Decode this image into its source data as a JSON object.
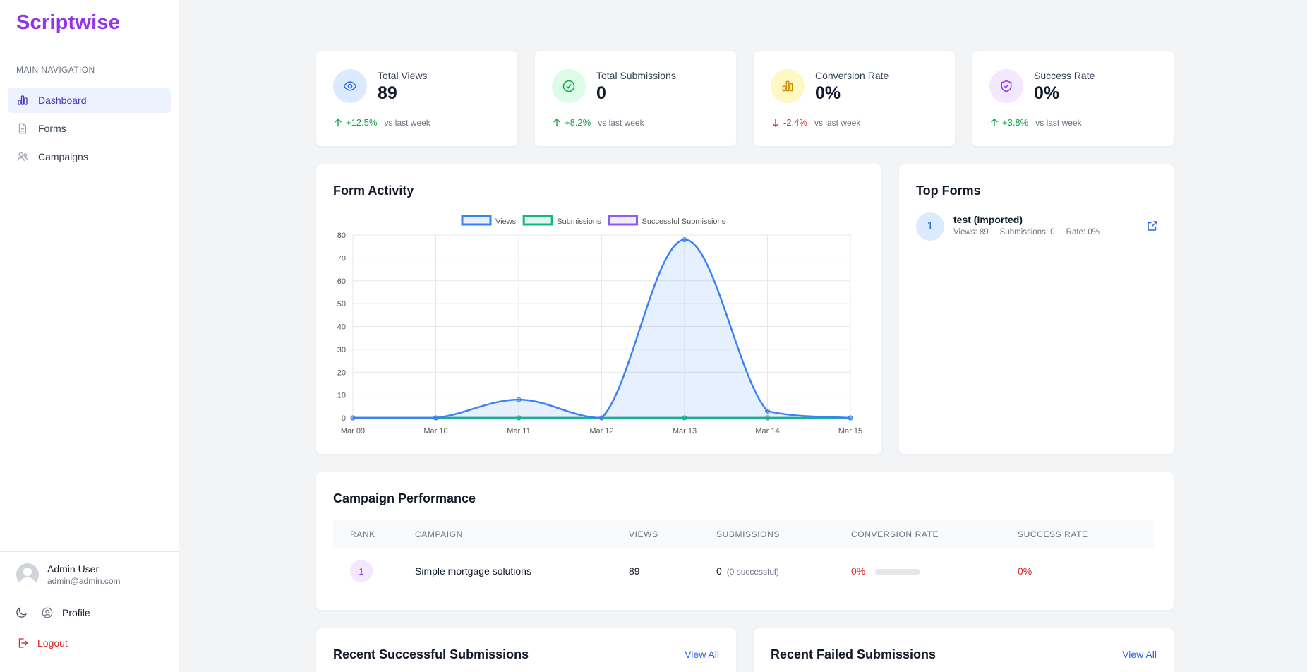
{
  "app": {
    "brand": "Scriptwise"
  },
  "sidebar": {
    "heading": "MAIN NAVIGATION",
    "items": [
      {
        "label": "Dashboard",
        "icon": "bar-chart-icon",
        "active": true
      },
      {
        "label": "Forms",
        "icon": "document-icon",
        "active": false
      },
      {
        "label": "Campaigns",
        "icon": "users-icon",
        "active": false
      }
    ],
    "user": {
      "name": "Admin User",
      "email": "admin@admin.com"
    },
    "profile_label": "Profile",
    "logout_label": "Logout"
  },
  "stats": [
    {
      "label": "Total Views",
      "value": "89",
      "change": "+12.5%",
      "direction": "up",
      "vs": "vs last week",
      "icon": "eye-icon",
      "icon_bg": "#dbeafe",
      "icon_color": "#2563eb"
    },
    {
      "label": "Total Submissions",
      "value": "0",
      "change": "+8.2%",
      "direction": "up",
      "vs": "vs last week",
      "icon": "check-circle-icon",
      "icon_bg": "#dcfce7",
      "icon_color": "#16a34a"
    },
    {
      "label": "Conversion Rate",
      "value": "0%",
      "change": "-2.4%",
      "direction": "down",
      "vs": "vs last week",
      "icon": "bar-chart-icon",
      "icon_bg": "#fef9c3",
      "icon_color": "#ca8a04"
    },
    {
      "label": "Success Rate",
      "value": "0%",
      "change": "+3.8%",
      "direction": "up",
      "vs": "vs last week",
      "icon": "shield-check-icon",
      "icon_bg": "#f3e8ff",
      "icon_color": "#9333ea"
    }
  ],
  "form_activity": {
    "title": "Form Activity"
  },
  "chart_data": {
    "type": "line",
    "title": "Form Activity",
    "categories": [
      "Mar 09",
      "Mar 10",
      "Mar 11",
      "Mar 12",
      "Mar 13",
      "Mar 14",
      "Mar 15"
    ],
    "ylim": [
      0,
      80
    ],
    "yticks": [
      0,
      10,
      20,
      30,
      40,
      50,
      60,
      70,
      80
    ],
    "grid": true,
    "legend_position": "top-center",
    "series": [
      {
        "name": "Views",
        "values": [
          0,
          0,
          8,
          0,
          78,
          3,
          0
        ],
        "color": "#3b82f6",
        "fill": true
      },
      {
        "name": "Submissions",
        "values": [
          0,
          0,
          0,
          0,
          0,
          0,
          0
        ],
        "color": "#10b981",
        "fill": false
      },
      {
        "name": "Successful Submissions",
        "values": [
          0,
          0,
          0,
          0,
          0,
          0,
          0
        ],
        "color": "#8b5cf6",
        "fill": false
      }
    ]
  },
  "top_forms": {
    "title": "Top Forms",
    "items": [
      {
        "rank": "1",
        "name": "test (Imported)",
        "views": "Views: 89",
        "submissions": "Submissions: 0",
        "rate": "Rate: 0%"
      }
    ]
  },
  "campaigns": {
    "title": "Campaign Performance",
    "headers": [
      "RANK",
      "CAMPAIGN",
      "VIEWS",
      "SUBMISSIONS",
      "CONVERSION RATE",
      "SUCCESS RATE"
    ],
    "rows": [
      {
        "rank": "1",
        "campaign": "Simple mortgage solutions",
        "views": "89",
        "submissions": "0",
        "successful": "(0 successful)",
        "conversion": "0%",
        "conversion_value": 0,
        "success": "0%"
      }
    ]
  },
  "recent_success": {
    "title": "Recent Successful Submissions",
    "view_all": "View All"
  },
  "recent_failed": {
    "title": "Recent Failed Submissions",
    "view_all": "View All"
  }
}
